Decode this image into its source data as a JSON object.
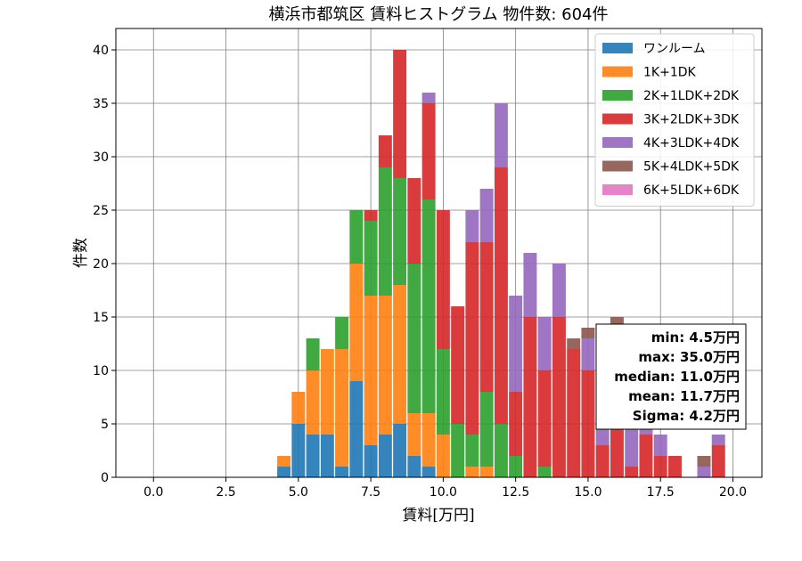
{
  "chart_data": {
    "type": "bar",
    "stacked": true,
    "title": "横浜市都筑区 賃料ヒストグラム 物件数: 604件",
    "xlabel": "賃料[万円]",
    "ylabel": "件数",
    "xlim": [
      -1.3,
      21.0
    ],
    "ylim": [
      0,
      42
    ],
    "xticks": [
      "0.0",
      "2.5",
      "5.0",
      "7.5",
      "10.0",
      "12.5",
      "15.0",
      "17.5",
      "20.0"
    ],
    "xtick_values": [
      0,
      2.5,
      5,
      7.5,
      10,
      12.5,
      15,
      17.5,
      20
    ],
    "yticks": [
      "0",
      "5",
      "10",
      "15",
      "20",
      "25",
      "30",
      "35",
      "40"
    ],
    "ytick_values": [
      0,
      5,
      10,
      15,
      20,
      25,
      30,
      35,
      40
    ],
    "grid": true,
    "legend_position": "top-right",
    "bin_width": 0.5,
    "x": [
      4.5,
      5.0,
      5.5,
      6.0,
      6.5,
      7.0,
      7.5,
      8.0,
      8.5,
      9.0,
      9.5,
      10.0,
      10.5,
      11.0,
      11.5,
      12.0,
      12.5,
      13.0,
      13.5,
      14.0,
      14.5,
      15.0,
      15.5,
      16.0,
      16.5,
      17.0,
      17.5,
      18.0,
      18.5,
      19.0,
      19.5
    ],
    "series": [
      {
        "name": "ワンルーム",
        "color": "#1f77b4",
        "values": [
          1,
          5,
          4,
          4,
          1,
          9,
          3,
          4,
          5,
          2,
          1,
          0,
          0,
          0,
          0,
          0,
          0,
          0,
          0,
          0,
          0,
          0,
          0,
          0,
          0,
          0,
          0,
          0,
          0,
          0,
          0
        ]
      },
      {
        "name": "1K+1DK",
        "color": "#ff7f0e",
        "values": [
          1,
          3,
          6,
          8,
          11,
          11,
          14,
          13,
          13,
          4,
          5,
          4,
          0,
          1,
          1,
          0,
          0,
          0,
          0,
          0,
          0,
          0,
          0,
          0,
          0,
          0,
          0,
          0,
          0,
          0,
          0
        ]
      },
      {
        "name": "2K+1LDK+2DK",
        "color": "#2ca02c",
        "values": [
          0,
          0,
          3,
          0,
          3,
          5,
          7,
          12,
          10,
          14,
          20,
          8,
          5,
          3,
          7,
          5,
          2,
          0,
          1,
          0,
          0,
          0,
          0,
          0,
          0,
          0,
          0,
          0,
          0,
          0,
          0
        ]
      },
      {
        "name": "3K+2LDK+3DK",
        "color": "#d62728",
        "values": [
          0,
          0,
          0,
          0,
          0,
          0,
          1,
          3,
          12,
          8,
          9,
          13,
          11,
          18,
          14,
          24,
          6,
          15,
          9,
          15,
          12,
          10,
          3,
          6,
          1,
          4,
          2,
          2,
          0,
          0,
          3
        ]
      },
      {
        "name": "4K+3LDK+4DK",
        "color": "#9467bd",
        "values": [
          0,
          0,
          0,
          0,
          0,
          0,
          0,
          0,
          0,
          0,
          1,
          0,
          0,
          3,
          5,
          6,
          9,
          6,
          5,
          5,
          0,
          3,
          2,
          8,
          4,
          1,
          2,
          0,
          0,
          1,
          1
        ]
      },
      {
        "name": "5K+4LDK+5DK",
        "color": "#8c564b",
        "values": [
          0,
          0,
          0,
          0,
          0,
          0,
          0,
          0,
          0,
          0,
          0,
          0,
          0,
          0,
          0,
          0,
          0,
          0,
          0,
          0,
          1,
          1,
          0,
          1,
          0,
          1,
          0,
          0,
          0,
          1,
          0
        ]
      },
      {
        "name": "6K+5LDK+6DK",
        "color": "#e377c2",
        "values": [
          0,
          0,
          0,
          0,
          0,
          0,
          0,
          0,
          0,
          0,
          0,
          0,
          0,
          0,
          0,
          0,
          0,
          0,
          0,
          0,
          0,
          0,
          0,
          0,
          0,
          0,
          0,
          0,
          0,
          0,
          0
        ]
      }
    ],
    "stats": [
      "min: 4.5万円",
      "max: 35.0万円",
      "median: 11.0万円",
      "mean: 11.7万円",
      "Sigma: 4.2万円"
    ]
  }
}
